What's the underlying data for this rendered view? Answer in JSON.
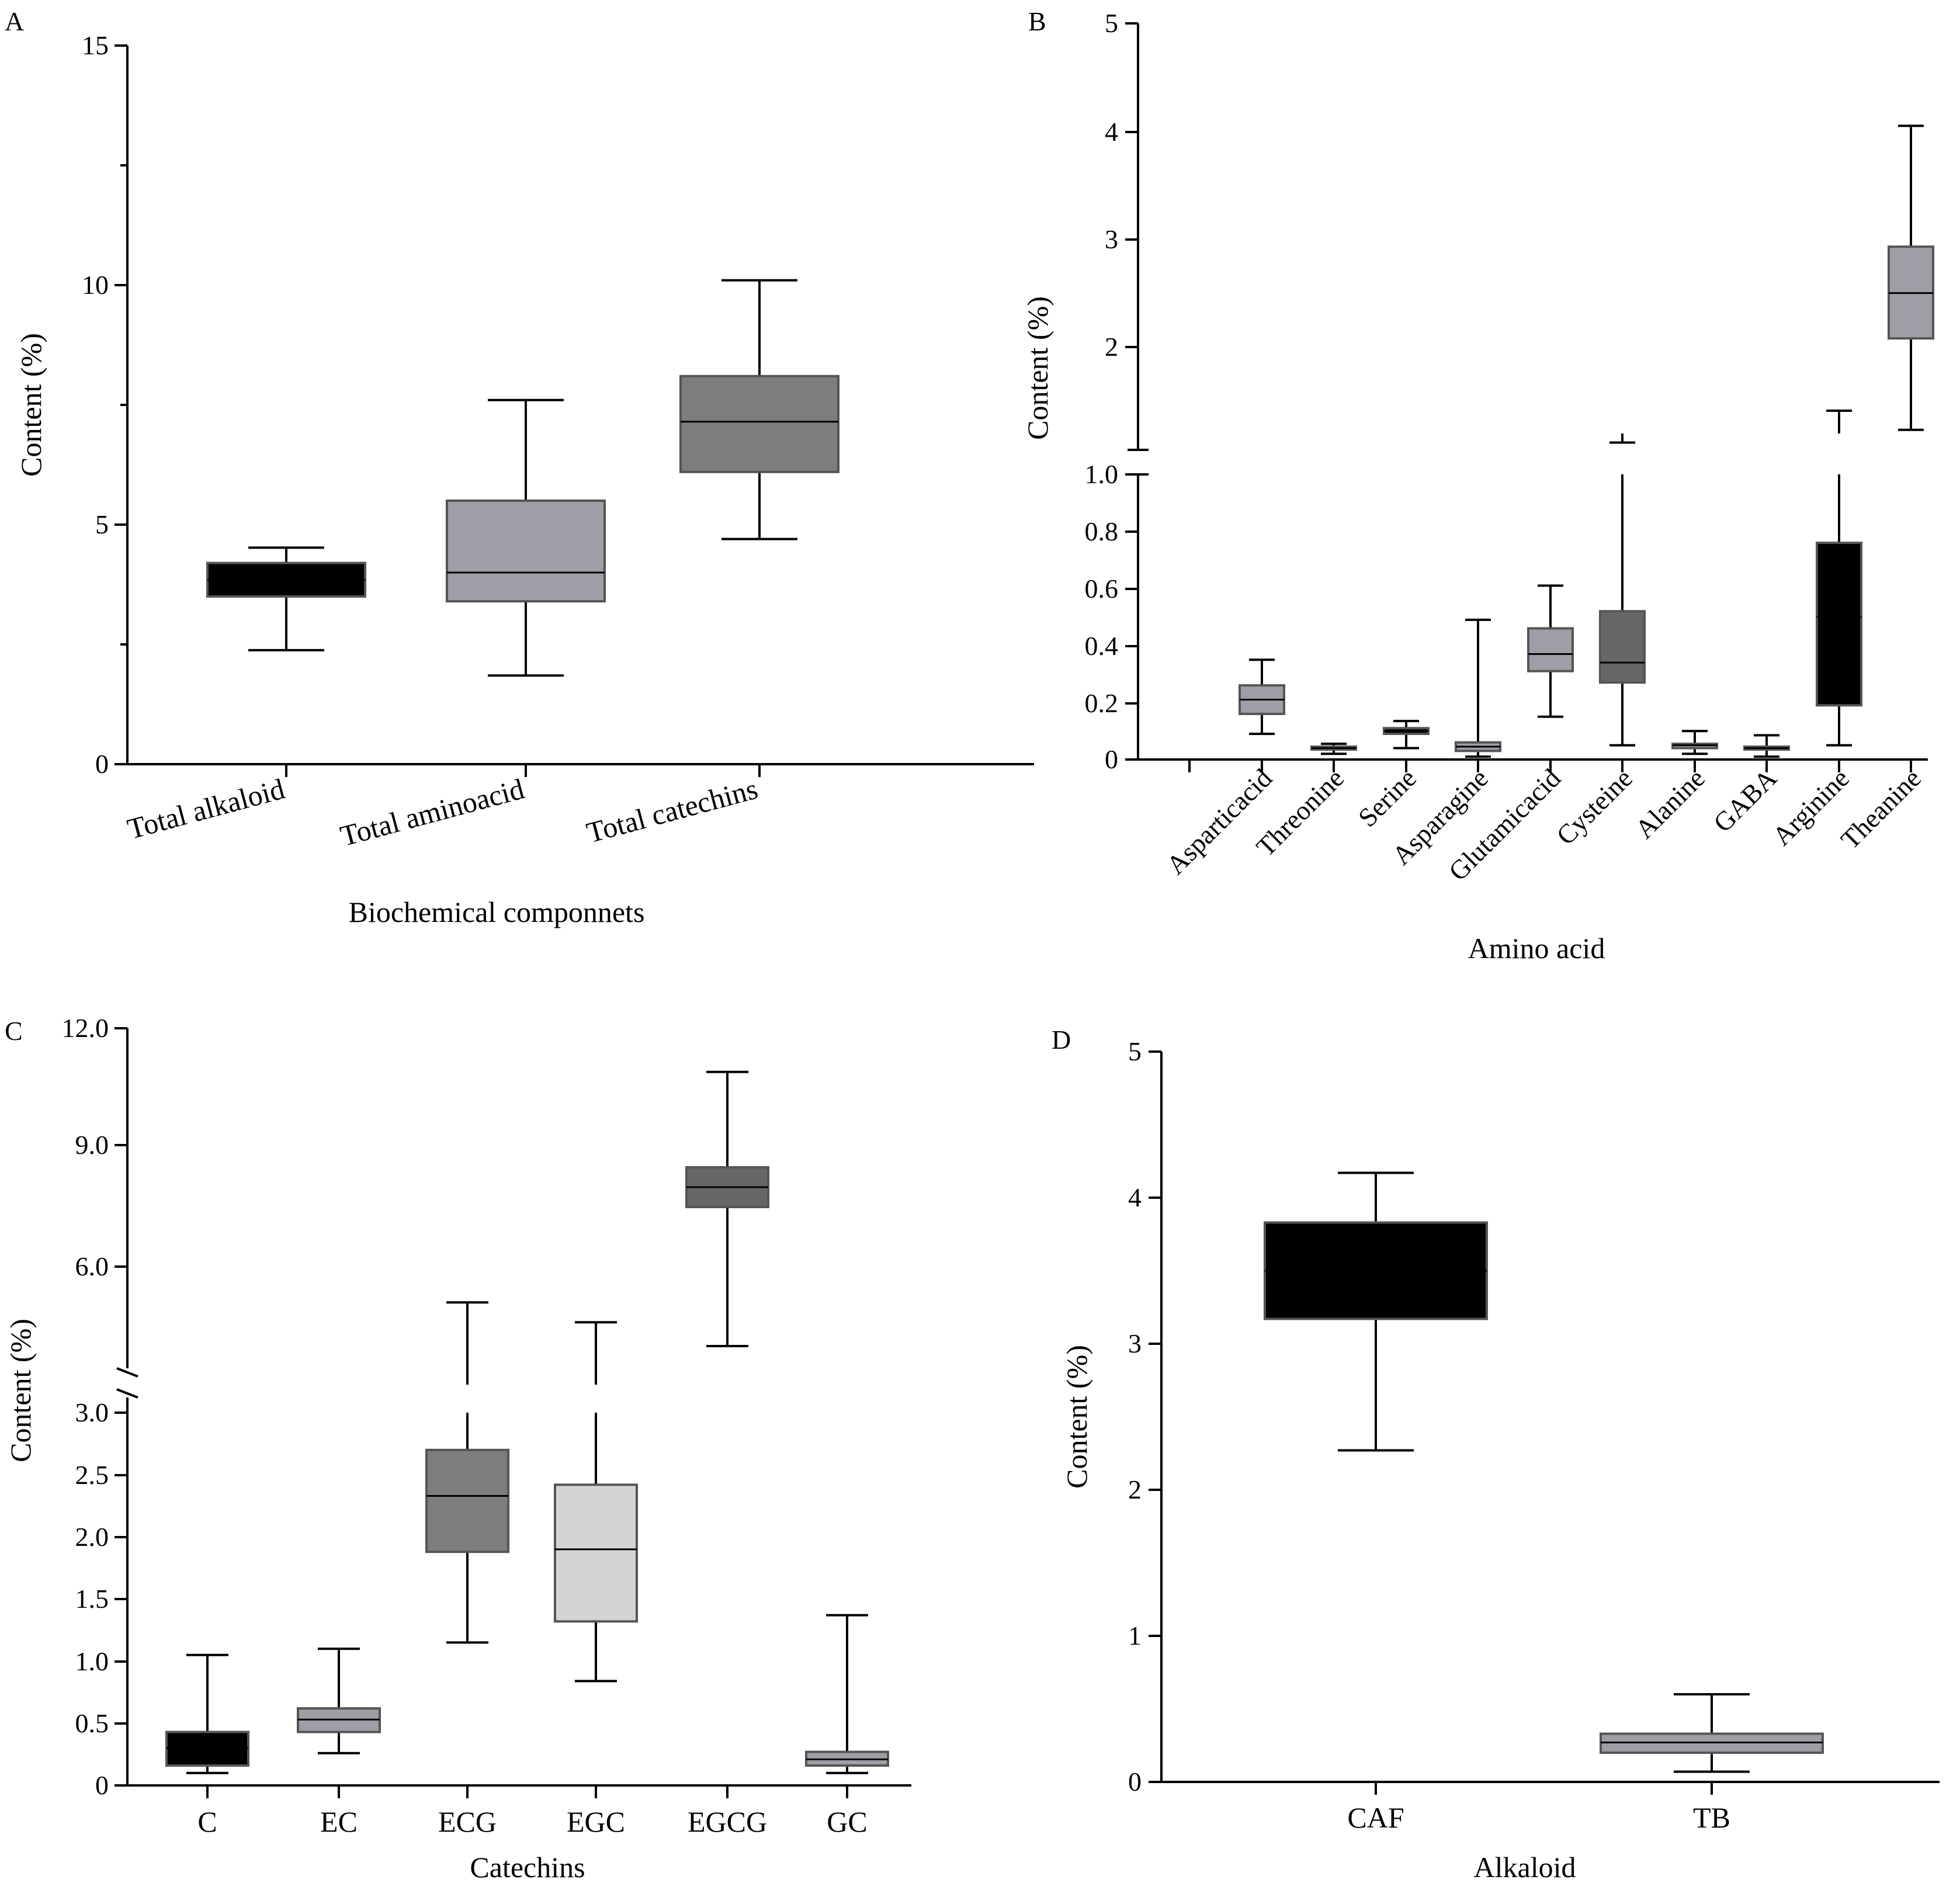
{
  "chart_data": [
    {
      "panel": "A",
      "type": "box",
      "xlabel": "Biochemical componnets",
      "ylabel": "Content (%)",
      "ylim": [
        0,
        15
      ],
      "yticks": [
        "0",
        "5",
        "10",
        "15"
      ],
      "categories": [
        "Total alkaloid",
        "Total aminoacid",
        "Total catechins"
      ],
      "boxes": [
        {
          "min": 2.38,
          "q1": 3.5,
          "median": 3.85,
          "q3": 4.2,
          "max": 4.52,
          "color": "#000000"
        },
        {
          "min": 1.85,
          "q1": 3.4,
          "median": 4.0,
          "q3": 5.5,
          "max": 7.6,
          "color": "#9e9ea6"
        },
        {
          "min": 4.7,
          "q1": 6.1,
          "median": 7.15,
          "q3": 8.1,
          "max": 10.1,
          "color": "#7d7d80"
        }
      ]
    },
    {
      "panel": "B",
      "type": "box",
      "xlabel": "Amino acid",
      "ylabel": "Content (%)",
      "axis_break": true,
      "yticks_lower": [
        "0",
        "0.2",
        "0.4",
        "0.6",
        "0.8",
        "1.0"
      ],
      "yticks_upper": [
        "2",
        "3",
        "4",
        "5"
      ],
      "categories": [
        "Asparticacid",
        "Threonine",
        "Serine",
        "Asparagine",
        "Glutamicacid",
        "Cysteine",
        "Alanine",
        "GABA",
        "Arginine",
        "Theanine"
      ],
      "boxes": [
        {
          "min": 0.09,
          "q1": 0.16,
          "median": 0.21,
          "q3": 0.26,
          "max": 0.35,
          "color": "#9e9ea6"
        },
        {
          "min": 0.02,
          "q1": 0.035,
          "median": 0.04,
          "q3": 0.045,
          "max": 0.055,
          "color": "#9e9ea6"
        },
        {
          "min": 0.04,
          "q1": 0.09,
          "median": 0.1,
          "q3": 0.11,
          "max": 0.135,
          "color": "#000000"
        },
        {
          "min": 0.01,
          "q1": 0.03,
          "median": 0.045,
          "q3": 0.06,
          "max": 0.49,
          "color": "#9e9ea6"
        },
        {
          "min": 0.15,
          "q1": 0.31,
          "median": 0.37,
          "q3": 0.46,
          "max": 0.61,
          "color": "#9e9ea6"
        },
        {
          "min": 0.05,
          "q1": 0.27,
          "median": 0.34,
          "q3": 0.52,
          "max": 1.25,
          "color": "#666666"
        },
        {
          "min": 0.02,
          "q1": 0.04,
          "median": 0.05,
          "q3": 0.055,
          "max": 0.1,
          "color": "#9e9ea6"
        },
        {
          "min": 0.01,
          "q1": 0.035,
          "median": 0.04,
          "q3": 0.045,
          "max": 0.085,
          "color": "#9e9ea6"
        },
        {
          "min": 0.05,
          "q1": 0.19,
          "median": 0.5,
          "q3": 0.76,
          "max": 1.5,
          "color": "#000000"
        },
        {
          "min": 1.35,
          "q1": 2.08,
          "median": 2.5,
          "q3": 2.93,
          "max": 4.05,
          "color": "#9e9ea6"
        }
      ]
    },
    {
      "panel": "C",
      "type": "box",
      "xlabel": "Catechins",
      "ylabel": "Content (%)",
      "axis_break": true,
      "yticks_lower": [
        "0",
        "0.5",
        "1.0",
        "1.5",
        "2.0",
        "2.5",
        "3.0"
      ],
      "yticks_upper": [
        "6.0",
        "9.0",
        "12.0"
      ],
      "categories": [
        "C",
        "EC",
        "ECG",
        "EGC",
        "EGCG",
        "GC"
      ],
      "boxes": [
        {
          "min": 0.1,
          "q1": 0.16,
          "median": 0.3,
          "q3": 0.43,
          "max": 1.05,
          "color": "#000000"
        },
        {
          "min": 0.26,
          "q1": 0.43,
          "median": 0.53,
          "q3": 0.62,
          "max": 1.1,
          "color": "#9e9ea6"
        },
        {
          "min": 1.15,
          "q1": 1.88,
          "median": 2.33,
          "q3": 2.7,
          "max": 5.1,
          "color": "#7d7d80"
        },
        {
          "min": 0.84,
          "q1": 1.32,
          "median": 1.9,
          "q3": 2.42,
          "max": 4.6,
          "color": "#d4d4d4"
        },
        {
          "min": 4.0,
          "q1": 7.5,
          "median": 8.0,
          "q3": 8.5,
          "max": 10.9,
          "color": "#666666"
        },
        {
          "min": 0.1,
          "q1": 0.16,
          "median": 0.21,
          "q3": 0.27,
          "max": 1.37,
          "color": "#9e9ea6"
        }
      ]
    },
    {
      "panel": "D",
      "type": "box",
      "xlabel": "Alkaloid",
      "ylabel": "Content (%)",
      "ylim": [
        0,
        5
      ],
      "yticks": [
        "0",
        "1",
        "2",
        "3",
        "4",
        "5"
      ],
      "categories": [
        "CAF",
        "TB"
      ],
      "boxes": [
        {
          "min": 2.27,
          "q1": 3.17,
          "median": 3.5,
          "q3": 3.83,
          "max": 4.17,
          "color": "#000000"
        },
        {
          "min": 0.07,
          "q1": 0.2,
          "median": 0.27,
          "q3": 0.33,
          "max": 0.6,
          "color": "#9e9ea6"
        }
      ]
    }
  ]
}
